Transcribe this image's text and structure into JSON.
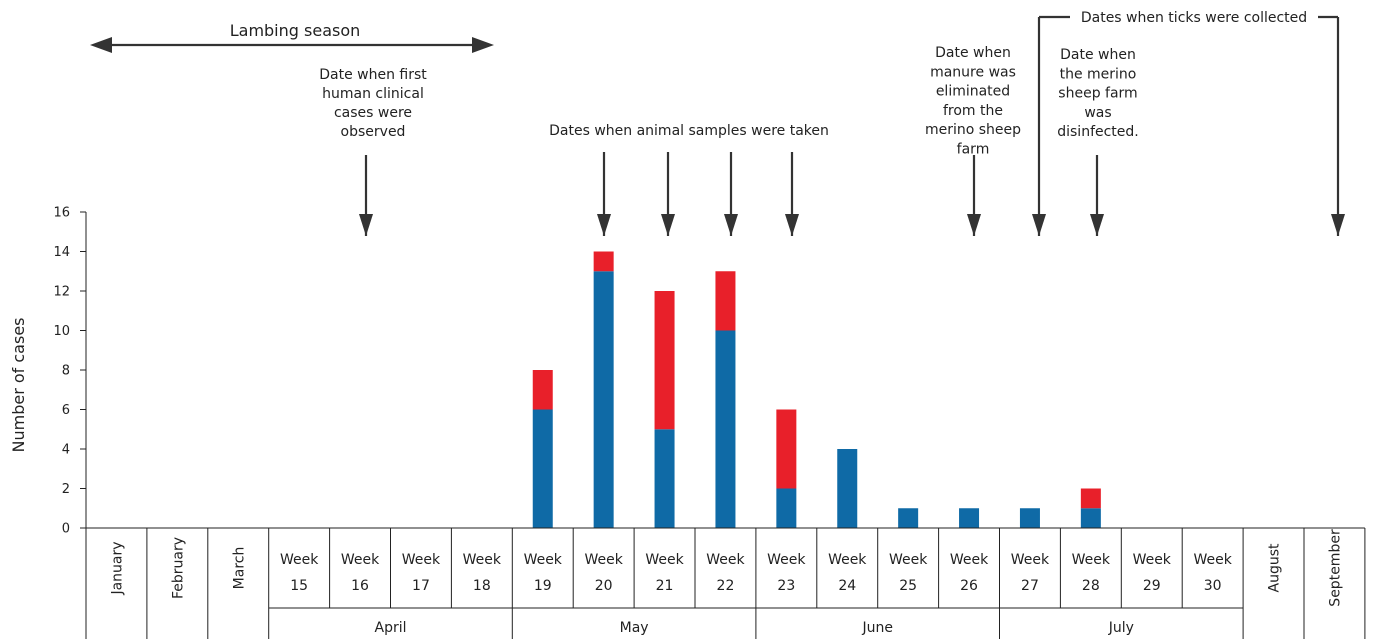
{
  "chart_data": {
    "type": "bar",
    "stacked": true,
    "ylabel": "Number of cases",
    "ylim": [
      0,
      16
    ],
    "yticks": [
      "0",
      "2",
      "4",
      "6",
      "8",
      "10",
      "12",
      "14",
      "16"
    ],
    "categories": [
      {
        "label": "January",
        "lines": [
          "January"
        ],
        "rotated": true
      },
      {
        "label": "February",
        "lines": [
          "February"
        ],
        "rotated": true
      },
      {
        "label": "March",
        "lines": [
          "March"
        ],
        "rotated": true
      },
      {
        "label": "Week 15",
        "lines": [
          "Week",
          "15"
        ]
      },
      {
        "label": "Week 16",
        "lines": [
          "Week",
          "16"
        ]
      },
      {
        "label": "Week 17",
        "lines": [
          "Week",
          "17"
        ]
      },
      {
        "label": "Week 18",
        "lines": [
          "Week",
          "18"
        ]
      },
      {
        "label": "Week 19",
        "lines": [
          "Week",
          "19"
        ]
      },
      {
        "label": "Week 20",
        "lines": [
          "Week",
          "20"
        ]
      },
      {
        "label": "Week 21",
        "lines": [
          "Week",
          "21"
        ]
      },
      {
        "label": "Week 22",
        "lines": [
          "Week",
          "22"
        ]
      },
      {
        "label": "Week 23",
        "lines": [
          "Week",
          "23"
        ]
      },
      {
        "label": "Week 24",
        "lines": [
          "Week",
          "24"
        ]
      },
      {
        "label": "Week 25",
        "lines": [
          "Week",
          "25"
        ]
      },
      {
        "label": "Week 26",
        "lines": [
          "Week",
          "26"
        ]
      },
      {
        "label": "Week 27",
        "lines": [
          "Week",
          "27"
        ]
      },
      {
        "label": "Week 28",
        "lines": [
          "Week",
          "28"
        ]
      },
      {
        "label": "Week 29",
        "lines": [
          "Week",
          "29"
        ]
      },
      {
        "label": "Week 30",
        "lines": [
          "Week",
          "30"
        ]
      },
      {
        "label": "August",
        "lines": [
          "August"
        ],
        "rotated": true
      },
      {
        "label": "September",
        "lines": [
          "September"
        ],
        "rotated": true
      }
    ],
    "months": [
      {
        "label": "April",
        "from": 3,
        "to": 6
      },
      {
        "label": "May",
        "from": 7,
        "to": 10
      },
      {
        "label": "June",
        "from": 11,
        "to": 14
      },
      {
        "label": "July",
        "from": 15,
        "to": 18
      }
    ],
    "series": [
      {
        "color": "#0f6aa6",
        "values": [
          0,
          0,
          0,
          0,
          0,
          0,
          0,
          6,
          13,
          5,
          10,
          2,
          4,
          1,
          1,
          1,
          1,
          0,
          0,
          0,
          0
        ]
      },
      {
        "color": "#e8202a",
        "values": [
          0,
          0,
          0,
          0,
          0,
          0,
          0,
          2,
          1,
          7,
          3,
          4,
          0,
          0,
          0,
          0,
          1,
          0,
          0,
          0,
          0
        ]
      }
    ],
    "annotations": {
      "lambing_season": {
        "label": "Lambing season",
        "from_category": 0,
        "to_category": 6
      },
      "first_cases": {
        "lines": [
          "Date when first",
          "human clinical",
          "cases were",
          "observed"
        ],
        "category": 4
      },
      "animal_samples": {
        "label": "Dates when animal samples were taken",
        "categories": [
          8,
          9,
          10,
          11
        ]
      },
      "manure": {
        "lines": [
          "Date when",
          "manure was",
          "eliminated",
          "from the",
          "merino sheep",
          "farm"
        ],
        "category": 14
      },
      "disinfected": {
        "lines": [
          "Date when",
          "the merino",
          "sheep farm",
          "was",
          "disinfected."
        ],
        "category": 16
      },
      "ticks": {
        "label": "Dates when ticks were collected",
        "categories": [
          15,
          20
        ]
      }
    }
  }
}
